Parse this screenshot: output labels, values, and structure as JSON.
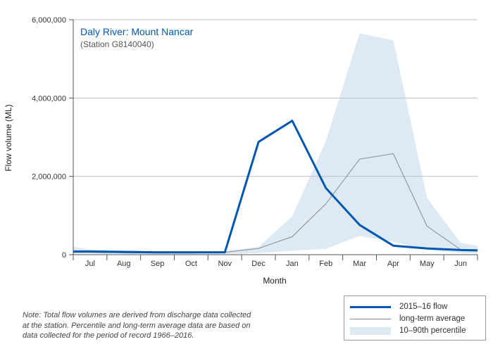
{
  "chart_data": {
    "type": "line",
    "title": "Daly River: Mount Nancar",
    "subtitle": "(Station G8140040)",
    "xlabel": "Month",
    "ylabel": "Flow volume (ML)",
    "categories": [
      "Jul",
      "Aug",
      "Sep",
      "Oct",
      "Nov",
      "Dec",
      "Jan",
      "Feb",
      "Mar",
      "Apr",
      "May",
      "Jun"
    ],
    "ylim": [
      0,
      6000000
    ],
    "yticks": [
      0,
      2000000,
      4000000,
      6000000
    ],
    "ytick_labels": [
      "0",
      "2,000,000",
      "4,000,000",
      "6,000,000"
    ],
    "series": [
      {
        "name": "2015–16 flow",
        "x": [
          -0.5,
          0,
          1,
          2,
          3,
          4,
          5,
          6,
          7,
          8,
          9,
          10,
          11,
          11.5
        ],
        "values": [
          80000,
          80000,
          70000,
          60000,
          60000,
          60000,
          2880000,
          3420000,
          1700000,
          760000,
          230000,
          160000,
          120000,
          110000
        ],
        "color": "#0057b0"
      },
      {
        "name": "long-term average",
        "x": [
          -0.5,
          0,
          1,
          2,
          3,
          4,
          5,
          6,
          7,
          8,
          9,
          10,
          11,
          11.5
        ],
        "values": [
          60000,
          60000,
          50000,
          40000,
          40000,
          60000,
          160000,
          460000,
          1300000,
          2440000,
          2580000,
          730000,
          130000,
          100000
        ],
        "color": "#8a8a8a"
      }
    ],
    "band": {
      "name": "10–90th percentile",
      "x": [
        -0.5,
        0,
        1,
        2,
        3,
        4,
        5,
        6,
        7,
        8,
        9,
        10,
        11,
        11.5
      ],
      "lower": [
        20000,
        20000,
        15000,
        10000,
        10000,
        15000,
        40000,
        100000,
        150000,
        480000,
        330000,
        120000,
        40000,
        30000
      ],
      "upper": [
        200000,
        130000,
        110000,
        90000,
        80000,
        90000,
        200000,
        980000,
        2900000,
        5650000,
        5480000,
        1450000,
        300000,
        230000
      ],
      "color": "#ddeaf4"
    }
  },
  "legend": {
    "flow": "2015–16 flow",
    "average": "long-term average",
    "percentile": "10–90th percentile"
  },
  "note": {
    "line1": "Note: Total flow volumes are derived from discharge data collected",
    "line2": "at the station. Percentile and long-term average data are based on",
    "line3": "data collected for the period of record 1966–2016."
  }
}
